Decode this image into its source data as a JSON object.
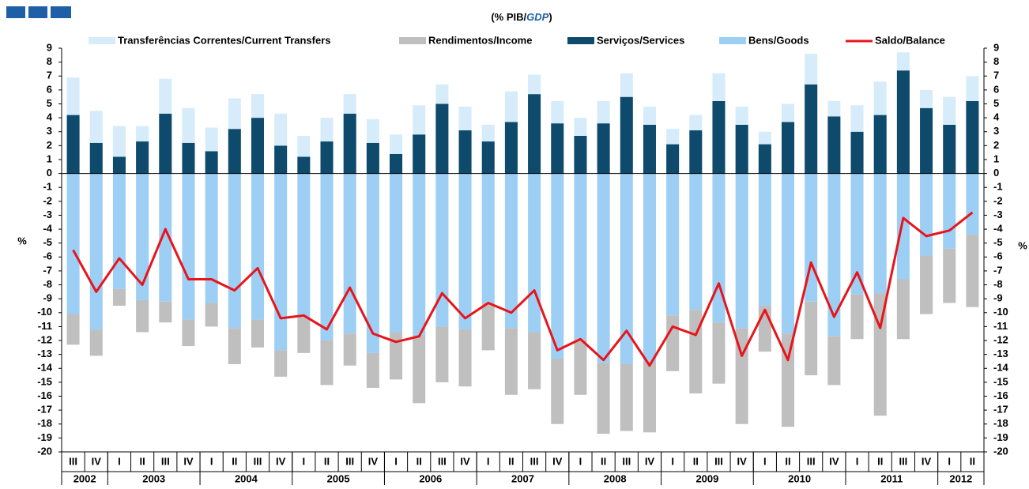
{
  "chart_data": {
    "type": "stacked-bar-line",
    "title_parts": [
      "(% PIB/",
      "GDP",
      ")"
    ],
    "y_label": "%",
    "y2_label": "%",
    "categories": [
      "III",
      "IV",
      "I",
      "II",
      "III",
      "IV",
      "I",
      "II",
      "III",
      "IV",
      "I",
      "II",
      "III",
      "IV",
      "I",
      "II",
      "III",
      "IV",
      "I",
      "II",
      "III",
      "IV",
      "I",
      "II",
      "III",
      "IV",
      "I",
      "II",
      "III",
      "IV",
      "I",
      "II",
      "III",
      "IV",
      "I",
      "II",
      "III",
      "IV",
      "I",
      "II"
    ],
    "years": [
      "2002",
      "2003",
      "2004",
      "2005",
      "2006",
      "2007",
      "2008",
      "2009",
      "2010",
      "2011",
      "2012"
    ],
    "ylim": [
      -20,
      9
    ],
    "yticks": [
      9,
      8,
      7,
      6,
      5,
      4,
      3,
      2,
      1,
      0,
      -1,
      -2,
      -3,
      -4,
      -5,
      -6,
      -7,
      -8,
      -9,
      -10,
      -11,
      -12,
      -13,
      -14,
      -15,
      -16,
      -17,
      -18,
      -19,
      -20
    ],
    "y2lim": [
      -20,
      9
    ],
    "y2ticks": [
      9,
      8,
      7,
      6,
      5,
      4,
      3,
      2,
      1,
      0,
      -1,
      -2,
      -3,
      -4,
      -5,
      -6,
      -7,
      -8,
      -9,
      -10,
      -11,
      -12,
      -13,
      -14,
      -15,
      -16,
      -17,
      -18,
      -19,
      -20
    ],
    "series": [
      {
        "name": "Transferências Correntes/Current Transfers",
        "color": "#d6ecfa",
        "kind": "bar",
        "stack": "positive",
        "values": [
          2.7,
          2.3,
          2.2,
          1.1,
          2.5,
          2.5,
          1.7,
          2.2,
          1.7,
          2.3,
          1.5,
          1.7,
          1.4,
          1.7,
          1.4,
          2.1,
          1.4,
          1.7,
          1.2,
          2.2,
          1.4,
          1.6,
          1.3,
          1.6,
          1.7,
          1.3,
          1.1,
          1.1,
          2.0,
          1.3,
          0.9,
          1.3,
          2.2,
          1.1,
          1.9,
          2.4,
          1.3,
          1.3,
          2.0,
          1.8
        ]
      },
      {
        "name": "Rendimentos/Income",
        "color": "#bfbfbf",
        "kind": "bar",
        "stack": "negative",
        "values": [
          -2.2,
          -1.9,
          -1.2,
          -2.3,
          -1.5,
          -1.9,
          -1.7,
          -2.6,
          -2.0,
          -1.9,
          -2.6,
          -3.2,
          -2.3,
          -2.5,
          -3.4,
          -4.9,
          -4.0,
          -4.1,
          -3.4,
          -4.8,
          -4.1,
          -4.7,
          -4.0,
          -5.1,
          -4.8,
          -5.1,
          -4.0,
          -6.0,
          -4.4,
          -6.9,
          -3.3,
          -6.7,
          -5.3,
          -3.5,
          -3.2,
          -8.8,
          -4.3,
          -4.2,
          -3.9,
          -5.2
        ]
      },
      {
        "name": "Serviços/Services",
        "color": "#0d4a6b",
        "kind": "bar",
        "stack": "positive",
        "values": [
          4.2,
          2.2,
          1.2,
          2.3,
          4.3,
          2.2,
          1.6,
          3.2,
          4.0,
          2.0,
          1.2,
          2.3,
          4.3,
          2.2,
          1.4,
          2.8,
          5.0,
          3.1,
          2.3,
          3.7,
          5.7,
          3.6,
          2.7,
          3.6,
          5.5,
          3.5,
          2.1,
          3.1,
          5.2,
          3.5,
          2.1,
          3.7,
          6.4,
          4.1,
          3.0,
          4.2,
          7.4,
          4.7,
          3.5,
          5.2
        ]
      },
      {
        "name": "Bens/Goods",
        "color": "#9dcff5",
        "kind": "bar",
        "stack": "negative",
        "values": [
          -10.1,
          -11.2,
          -8.3,
          -9.1,
          -9.2,
          -10.5,
          -9.3,
          -11.1,
          -10.5,
          -12.7,
          -10.3,
          -12.0,
          -11.5,
          -12.9,
          -11.4,
          -11.6,
          -11.0,
          -11.2,
          -9.3,
          -11.1,
          -11.4,
          -13.3,
          -11.9,
          -13.6,
          -13.7,
          -13.5,
          -10.2,
          -9.8,
          -10.7,
          -11.1,
          -9.5,
          -11.5,
          -9.2,
          -11.7,
          -8.7,
          -8.6,
          -7.6,
          -5.9,
          -5.4,
          -4.4
        ]
      },
      {
        "name": "Saldo/Balance",
        "color": "#e8141b",
        "kind": "line",
        "values": [
          -5.5,
          -8.5,
          -6.1,
          -8.0,
          -4.0,
          -7.6,
          -7.6,
          -8.4,
          -6.8,
          -10.4,
          -10.2,
          -11.2,
          -8.2,
          -11.5,
          -12.1,
          -11.7,
          -8.6,
          -10.4,
          -9.3,
          -10.0,
          -8.4,
          -12.7,
          -11.9,
          -13.4,
          -11.3,
          -13.8,
          -11.0,
          -11.6,
          -7.9,
          -13.1,
          -9.8,
          -13.4,
          -6.4,
          -10.3,
          -7.1,
          -11.1,
          -3.2,
          -4.5,
          -4.1,
          -2.8
        ]
      }
    ]
  }
}
